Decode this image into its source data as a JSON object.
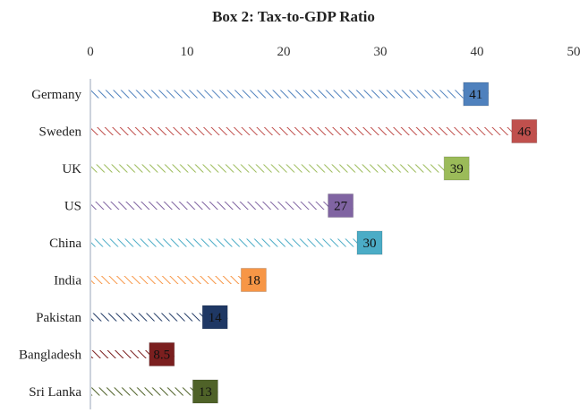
{
  "chart_data": {
    "type": "bar",
    "orientation": "horizontal",
    "title": "Box 2: Tax-to-GDP Ratio",
    "xlim": [
      0,
      50
    ],
    "xticks": [
      0,
      10,
      20,
      30,
      40,
      50
    ],
    "x_axis_position": "top",
    "grid": false,
    "legend": "none",
    "categories": [
      "Germany",
      "Sweden",
      "UK",
      "US",
      "China",
      "India",
      "Pakistan",
      "Bangladesh",
      "Sri Lanka"
    ],
    "values": [
      41,
      46,
      39,
      27,
      30,
      18,
      14,
      8.5,
      13
    ],
    "data_labels": [
      "41",
      "46",
      "39",
      "27",
      "30",
      "18",
      "14",
      "8.5",
      "13"
    ],
    "colors": [
      "#4f81bd",
      "#c0504d",
      "#9bbb59",
      "#8064a2",
      "#4bacc6",
      "#f79646",
      "#1f3864",
      "#7b1f1f",
      "#4f6228"
    ]
  }
}
